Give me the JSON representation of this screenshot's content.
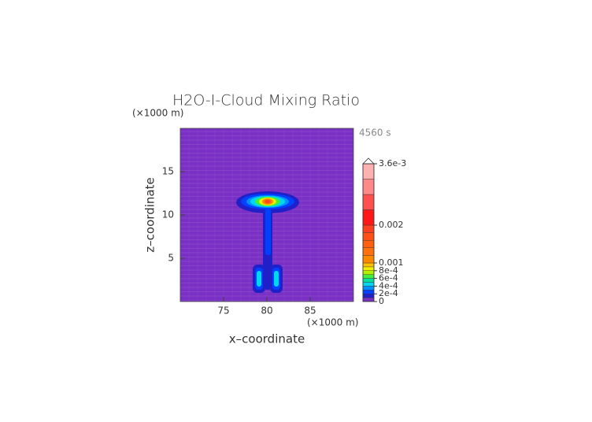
{
  "chart_data": {
    "type": "contour",
    "title": "H2O-I-Cloud Mixing Ratio",
    "time_label": "4560 s",
    "xlabel": "x–coordinate",
    "ylabel": "z–coordinate",
    "x_unit": "(×1000 m)",
    "y_unit": "(×1000 m)",
    "xlim": [
      70,
      90
    ],
    "ylim": [
      0,
      20
    ],
    "xticks": [
      75,
      80,
      85
    ],
    "yticks": [
      5,
      10,
      15
    ],
    "background_color": "#7a30c4",
    "colorbar": {
      "levels": [
        0,
        0.0001,
        0.0002,
        0.0003,
        0.0004,
        0.0005,
        0.0006,
        0.0007,
        0.0008,
        0.0009,
        0.001,
        0.0012,
        0.0014,
        0.0016,
        0.0018,
        0.002,
        0.0024,
        0.0028,
        0.0032,
        0.0036
      ],
      "colors": [
        "#7a30c4",
        "#2020c8",
        "#0040ff",
        "#0090ff",
        "#00d8f0",
        "#00e0a0",
        "#40f040",
        "#b0f000",
        "#f0f000",
        "#ffc000",
        "#ff8800",
        "#ff7010",
        "#ff6010",
        "#ff5018",
        "#ff4020",
        "#ff1818",
        "#ff5050",
        "#ff8888",
        "#ffb0b0"
      ],
      "ticks": [
        {
          "value": 0.0036,
          "label": "3.6e-3"
        },
        {
          "value": 0.002,
          "label": "0.002"
        },
        {
          "value": 0.001,
          "label": "0.001"
        },
        {
          "value": 0.0008,
          "label": "8e-4"
        },
        {
          "value": 0.0006,
          "label": "6e-4"
        },
        {
          "value": 0.0004,
          "label": "4e-4"
        },
        {
          "value": 0.0002,
          "label": "2e-4"
        },
        0
      ]
    }
  }
}
